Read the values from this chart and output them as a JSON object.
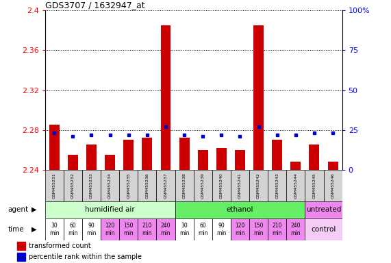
{
  "title": "GDS3707 / 1632947_at",
  "samples": [
    "GSM455231",
    "GSM455232",
    "GSM455233",
    "GSM455234",
    "GSM455235",
    "GSM455236",
    "GSM455237",
    "GSM455238",
    "GSM455239",
    "GSM455240",
    "GSM455241",
    "GSM455242",
    "GSM455243",
    "GSM455244",
    "GSM455245",
    "GSM455246"
  ],
  "transformed_count": [
    2.285,
    2.255,
    2.265,
    2.255,
    2.27,
    2.272,
    2.385,
    2.272,
    2.26,
    2.262,
    2.26,
    2.385,
    2.27,
    2.248,
    2.265,
    2.248
  ],
  "percentile_rank": [
    23,
    21,
    22,
    22,
    22,
    22,
    27,
    22,
    21,
    22,
    21,
    27,
    22,
    22,
    23,
    23
  ],
  "ymin": 2.24,
  "ymax": 2.4,
  "yticks": [
    2.24,
    2.28,
    2.32,
    2.36,
    2.4
  ],
  "y2min": 0,
  "y2max": 100,
  "y2ticks": [
    0,
    25,
    50,
    75,
    100
  ],
  "bar_color": "#cc0000",
  "dot_color": "#0000cc",
  "agent_groups": [
    {
      "label": "humidified air",
      "start": 0,
      "end": 7,
      "color": "#ccffcc"
    },
    {
      "label": "ethanol",
      "start": 7,
      "end": 14,
      "color": "#66ee66"
    },
    {
      "label": "untreated",
      "start": 14,
      "end": 16,
      "color": "#ee88ee"
    }
  ],
  "time_labels": [
    "30\nmin",
    "60\nmin",
    "90\nmin",
    "120\nmin",
    "150\nmin",
    "210\nmin",
    "240\nmin",
    "30\nmin",
    "60\nmin",
    "90\nmin",
    "120\nmin",
    "150\nmin",
    "210\nmin",
    "240\nmin"
  ],
  "time_colors": [
    "#ffffff",
    "#ffffff",
    "#ffffff",
    "#ee88ee",
    "#ee88ee",
    "#ee88ee",
    "#ee88ee",
    "#ffffff",
    "#ffffff",
    "#ffffff",
    "#ee88ee",
    "#ee88ee",
    "#ee88ee",
    "#ee88ee"
  ],
  "control_label": "control",
  "control_color": "#f5ccf5",
  "agent_label": "agent",
  "time_label": "time",
  "legend_bar_label": "transformed count",
  "legend_dot_label": "percentile rank within the sample",
  "bg_color": "#ffffff",
  "sample_bg": "#d3d3d3"
}
